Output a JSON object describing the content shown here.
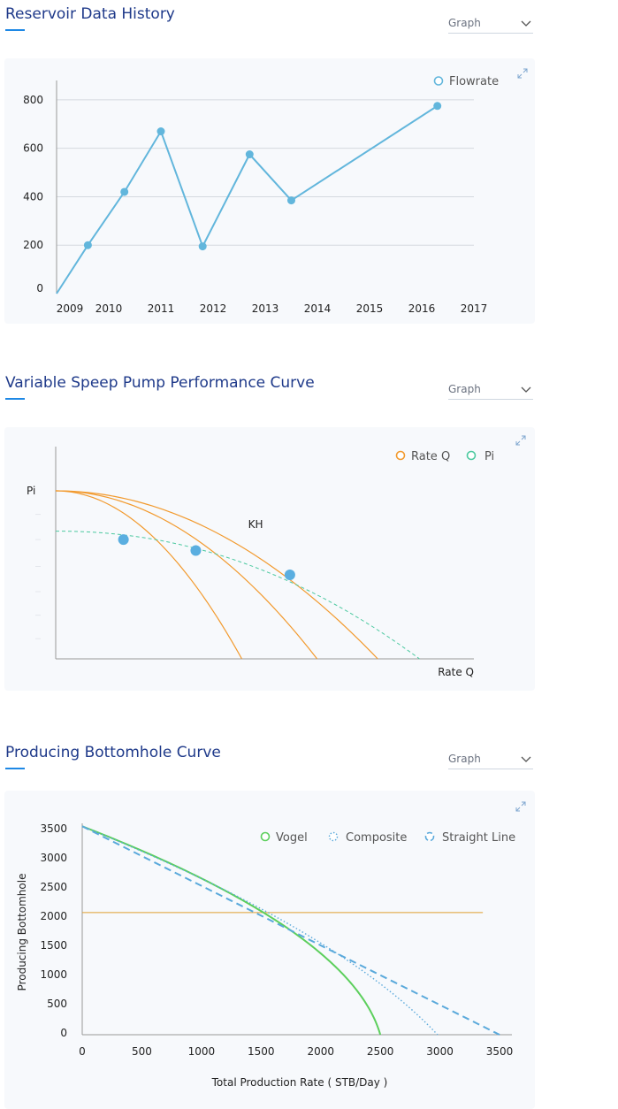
{
  "sections": [
    {
      "title": "Reservoir Data History",
      "dropdown": "Graph"
    },
    {
      "title": "Variable Speep Pump Performance Curve",
      "dropdown": "Graph"
    },
    {
      "title": "Producing Bottomhole Curve",
      "dropdown": "Graph"
    }
  ],
  "colors": {
    "accent": "#1e88e5",
    "title": "#1f3a8a",
    "card_bg": "#f7f9fc",
    "flow": "#62b6dc",
    "rate": "#f29a2e",
    "pi": "#4cc9a0",
    "vogel": "#5ccf5c",
    "composite": "#5aa9db",
    "straight": "#5aa9db",
    "level": "#e0a030"
  },
  "icons": {
    "dropdown": "chevron-down-icon",
    "expand": "expand-icon"
  },
  "chart_data": [
    {
      "type": "line",
      "title": "",
      "xlabel": "",
      "ylabel": "",
      "xlim": [
        2009,
        2017
      ],
      "ylim": [
        0,
        880
      ],
      "x_ticks": [
        2009,
        2010,
        2011,
        2012,
        2013,
        2014,
        2015,
        2016,
        2017
      ],
      "x_tick_labels": [
        "2009",
        "2010",
        "2011",
        "2012",
        "2013",
        "2014",
        "2015",
        "2016",
        "2017"
      ],
      "y_ticks": [
        0,
        200,
        400,
        600,
        800
      ],
      "y_tick_labels": [
        "0",
        "200",
        "400",
        "600",
        "800"
      ],
      "grid": true,
      "legend": "top-right",
      "series": [
        {
          "name": "Flowrate",
          "x": [
            2009.0,
            2009.6,
            2010.3,
            2011.0,
            2011.8,
            2012.7,
            2013.5,
            2016.3
          ],
          "y": [
            0,
            200,
            420,
            670,
            195,
            575,
            385,
            775
          ],
          "markers": [
            false,
            true,
            true,
            true,
            true,
            true,
            true,
            true
          ]
        }
      ]
    },
    {
      "type": "line",
      "title": "",
      "xlabel": "Rate Q",
      "ylabel": "Pi",
      "xlim": [
        0,
        1
      ],
      "ylim": [
        0,
        1
      ],
      "grid": false,
      "legend": "top-right",
      "legend_items": [
        {
          "name": "Rate Q",
          "color": "#f29a2e"
        },
        {
          "name": "Pi",
          "color": "#4cc9a0"
        }
      ],
      "annotation": {
        "text": "KH",
        "x": 0.46,
        "y": 0.8
      },
      "pump_curves": [
        {
          "qmax": 0.445
        },
        {
          "qmax": 0.625
        },
        {
          "qmax": 0.77
        }
      ],
      "system_curve": {
        "y0": 0.76,
        "xmax": 0.87
      },
      "operating_points": [
        {
          "x": 0.162,
          "y": 0.71
        },
        {
          "x": 0.335,
          "y": 0.645
        },
        {
          "x": 0.56,
          "y": 0.5
        }
      ]
    },
    {
      "type": "line",
      "title": "",
      "xlabel": "Total Production Rate ( STB/Day )",
      "ylabel": "Producing Bottomhole",
      "xlim": [
        0,
        3500
      ],
      "ylim": [
        0,
        3600
      ],
      "x_ticks": [
        0,
        500,
        1000,
        1500,
        2000,
        2500,
        3000,
        3500
      ],
      "x_tick_labels": [
        "0",
        "500",
        "1000",
        "1500",
        "2000",
        "2500",
        "3000",
        "3500"
      ],
      "y_ticks": [
        0,
        500,
        1000,
        1500,
        2000,
        2500,
        3000,
        3500
      ],
      "y_tick_labels": [
        "0",
        "500",
        "1000",
        "1500",
        "2000",
        "2500",
        "3000",
        "3500"
      ],
      "grid": false,
      "legend": "top-right",
      "reservoir_pressure": 3550,
      "series": [
        {
          "name": "Vogel",
          "qmax": 2500,
          "style": "solid"
        },
        {
          "name": "Composite",
          "qmax": 2980,
          "style": "dotted"
        },
        {
          "name": "Straight Line",
          "qmax": 3500,
          "style": "dashed"
        }
      ],
      "reference_line": {
        "y": 2080,
        "x_start": 0,
        "x_end": 3360
      }
    }
  ]
}
